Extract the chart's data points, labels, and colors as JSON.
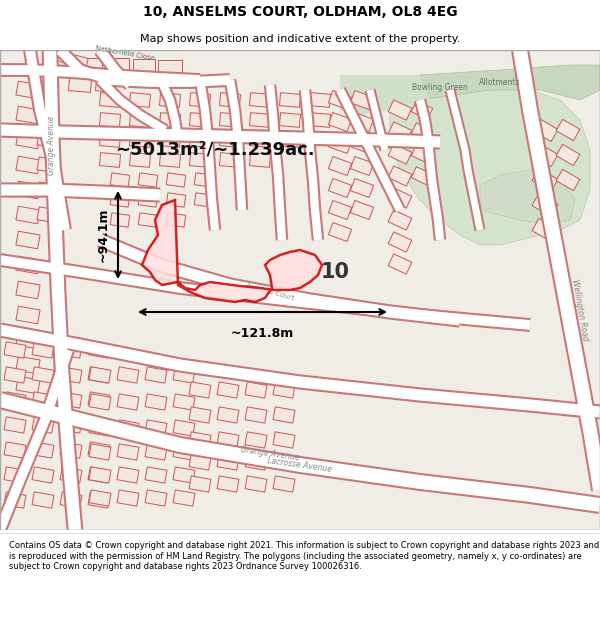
{
  "title_line1": "10, ANSELMS COURT, OLDHAM, OL8 4EG",
  "title_line2": "Map shows position and indicative extent of the property.",
  "footer_text": "Contains OS data © Crown copyright and database right 2021. This information is subject to Crown copyright and database rights 2023 and is reproduced with the permission of HM Land Registry. The polygons (including the associated geometry, namely x, y co-ordinates) are subject to Crown copyright and database rights 2023 Ordnance Survey 100026316.",
  "area_label": "~5013m²/~1.239ac.",
  "width_label": "~121.8m",
  "height_label": "~94.1m",
  "property_number": "10",
  "map_bg": "#f0ece6",
  "road_color": "#ffffff",
  "road_outline": "#e0a0a0",
  "building_fill": "#f0e8e0",
  "building_outline": "#d06060",
  "highlight_fill": "#ffe8e8",
  "highlight_outline": "#cc0000",
  "green1_color": "#d8e8d0",
  "green2_color": "#c8dcc0",
  "text_road": "#999999",
  "label_color": "#444444"
}
